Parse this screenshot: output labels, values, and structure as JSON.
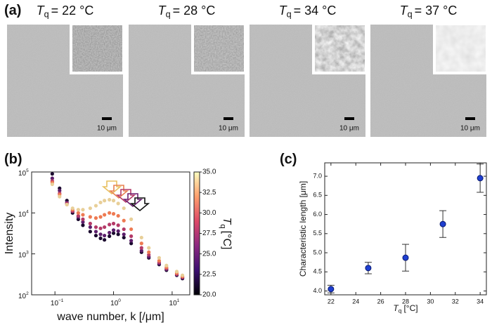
{
  "panel_a": {
    "label": "(a)",
    "images": [
      {
        "title": {
          "symbol": "T",
          "subscript": "q",
          "text": "= 22 °C"
        },
        "scale_bar": "10 μm"
      },
      {
        "title": {
          "symbol": "T",
          "subscript": "q",
          "text": "= 28 °C"
        },
        "scale_bar": "10 μm"
      },
      {
        "title": {
          "symbol": "T",
          "subscript": "q",
          "text": "= 34 °C"
        },
        "scale_bar": "10 μm"
      },
      {
        "title": {
          "symbol": "T",
          "subscript": "q",
          "text": "= 37 °C"
        },
        "scale_bar": "10 μm"
      }
    ]
  },
  "chart_data": [
    {
      "type": "scatter",
      "panel_label": "(b)",
      "x_label": "wave number, k [/μm]",
      "y_label": "Intensity",
      "log_x": true,
      "log_y": true,
      "xlim": [
        0.04,
        20
      ],
      "ylim": [
        100,
        100000
      ],
      "xticks": [
        {
          "value": 0.1,
          "label": "10",
          "exponent": "−1"
        },
        {
          "value": 1,
          "label": "10",
          "exponent": "0"
        },
        {
          "value": 10,
          "label": "10",
          "exponent": "1"
        }
      ],
      "yticks": [
        {
          "value": 100,
          "label": "10",
          "exponent": "2"
        },
        {
          "value": 1000,
          "label": "10",
          "exponent": "3"
        },
        {
          "value": 10000,
          "label": "10",
          "exponent": "4"
        },
        {
          "value": 100000,
          "label": "10",
          "exponent": "5"
        }
      ],
      "x": [
        0.09,
        0.12,
        0.16,
        0.2,
        0.25,
        0.3,
        0.4,
        0.5,
        0.6,
        0.7,
        0.85,
        1.0,
        1.2,
        1.5,
        2,
        3,
        4,
        6,
        8,
        12,
        15
      ],
      "series": [
        {
          "color": "#1a0a2e",
          "values": [
            90000,
            40000,
            20000,
            10000,
            7000,
            5000,
            3500,
            2800,
            2400,
            2200,
            2700,
            3200,
            3000,
            2500,
            1800,
            1100,
            800,
            550,
            400,
            300,
            250
          ]
        },
        {
          "color": "#5b1e6b",
          "values": [
            70000,
            35000,
            18000,
            11000,
            8000,
            6000,
            4500,
            3500,
            3000,
            2800,
            3300,
            3800,
            3600,
            3000,
            2100,
            1200,
            850,
            580,
            420,
            310,
            260
          ]
        },
        {
          "color": "#b43a68",
          "values": [
            60000,
            30000,
            17000,
            11000,
            8500,
            7000,
            5500,
            4500,
            4200,
            4500,
            5200,
            5500,
            5000,
            4000,
            2700,
            1400,
            950,
            620,
            440,
            320,
            270
          ]
        },
        {
          "color": "#ee7a52",
          "values": [
            55000,
            28000,
            16000,
            12000,
            10000,
            9000,
            8000,
            7500,
            8000,
            9000,
            10000,
            9500,
            8500,
            6500,
            4000,
            1800,
            1100,
            680,
            470,
            340,
            280
          ]
        },
        {
          "color": "#e8cf98",
          "values": [
            50000,
            25000,
            16000,
            13000,
            12000,
            12000,
            13000,
            15000,
            18000,
            20000,
            21000,
            20000,
            17000,
            13000,
            7000,
            2500,
            1400,
            800,
            520,
            370,
            300
          ]
        }
      ],
      "colorbar": {
        "label": {
          "symbol": "T",
          "subscript": "q",
          "unit": "[°C]"
        },
        "lim": [
          20,
          35
        ],
        "colors": [
          "#000004",
          "#3b0f70",
          "#8c2981",
          "#de4968",
          "#fe9f6d",
          "#fcfdbf"
        ],
        "ticks": [
          {
            "value": 20,
            "label": "20.0"
          },
          22.5,
          {
            "value": 25,
            "label": "25.0"
          },
          27.5,
          {
            "value": 30,
            "label": "30.0"
          },
          32.5,
          {
            "value": 35,
            "label": "35.0"
          }
        ]
      }
    },
    {
      "type": "errorbar",
      "panel_label": "(c)",
      "y_label": "Characteristic length [μm]",
      "x_label": {
        "symbol": "T",
        "subscript": "q",
        "unit": "[°C]"
      },
      "xlim": [
        21.5,
        34.5
      ],
      "ylim": [
        3.9,
        7.35
      ],
      "xticks": [
        22,
        24,
        26,
        28,
        30,
        32,
        34
      ],
      "yticks": [
        {
          "value": 4,
          "label": "4.0"
        },
        4.5,
        {
          "value": 5,
          "label": "5.0"
        },
        5.5,
        {
          "value": 6,
          "label": "6.0"
        },
        6.5,
        {
          "value": 7,
          "label": "7.0"
        }
      ],
      "x": [
        22,
        25,
        28,
        31,
        34
      ],
      "values": [
        4.05,
        4.6,
        4.87,
        5.75,
        6.95
      ],
      "errors": [
        0.1,
        0.15,
        0.35,
        0.35,
        0.37
      ],
      "color": "#1f3fd0"
    }
  ]
}
